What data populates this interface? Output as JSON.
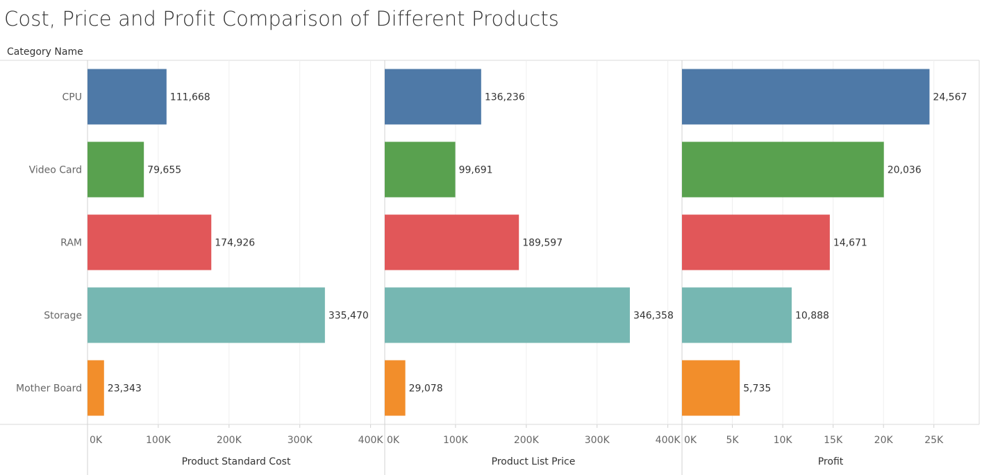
{
  "chart_data": {
    "type": "bar",
    "orientation": "horizontal",
    "title": "Cost, Price and Profit Comparison of Different Products",
    "row_header": "Category Name",
    "categories": [
      "CPU",
      "Video Card",
      "RAM",
      "Storage",
      "Mother Board"
    ],
    "colors": [
      "#4e79a7",
      "#59a14f",
      "#e15759",
      "#76b7b2",
      "#f28e2b"
    ],
    "grid": true,
    "legend": "none",
    "panels": [
      {
        "name": "Product Standard Cost",
        "xlabel": "Product Standard Cost",
        "values": [
          111668,
          79655,
          174926,
          335470,
          23343
        ],
        "value_labels": [
          "111,668",
          "79,655",
          "174,926",
          "335,470",
          "23,343"
        ],
        "xlim": [
          0,
          420000
        ],
        "ticks": [
          0,
          100000,
          200000,
          300000,
          400000
        ],
        "tick_labels": [
          "0K",
          "100K",
          "200K",
          "300K",
          "400K"
        ]
      },
      {
        "name": "Product List Price",
        "xlabel": "Product List Price",
        "values": [
          136236,
          99691,
          189597,
          346358,
          29078
        ],
        "value_labels": [
          "136,236",
          "99,691",
          "189,597",
          "346,358",
          "29,078"
        ],
        "xlim": [
          0,
          420000
        ],
        "ticks": [
          0,
          100000,
          200000,
          300000,
          400000
        ],
        "tick_labels": [
          "0K",
          "100K",
          "200K",
          "300K",
          "400K"
        ]
      },
      {
        "name": "Profit",
        "xlabel": "Profit",
        "values": [
          24567,
          20036,
          14671,
          10888,
          5735
        ],
        "value_labels": [
          "24,567",
          "20,036",
          "14,671",
          "10,888",
          "5,735"
        ],
        "xlim": [
          0,
          29500
        ],
        "ticks": [
          0,
          5000,
          10000,
          15000,
          20000,
          25000
        ],
        "tick_labels": [
          "0K",
          "5K",
          "10K",
          "15K",
          "20K",
          "25K"
        ]
      }
    ]
  }
}
